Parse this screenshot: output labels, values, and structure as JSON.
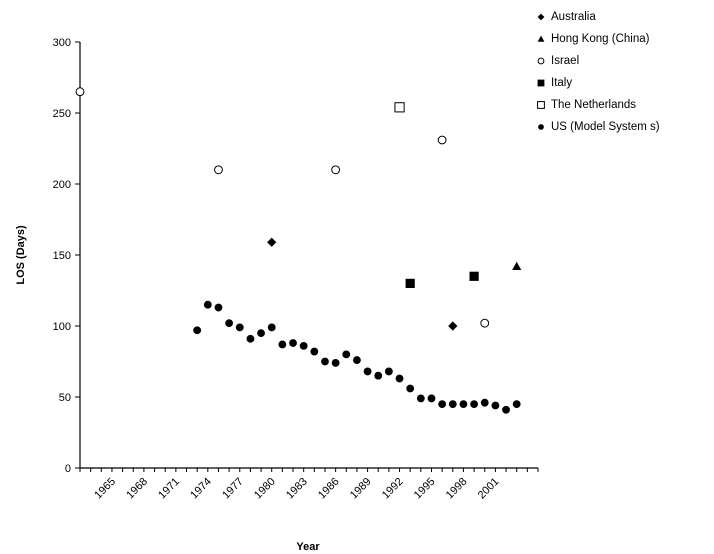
{
  "chart_data": {
    "type": "scatter",
    "title": "",
    "xlabel": "Year",
    "ylabel": "LOS (Days)",
    "xlim": [
      1962,
      2005
    ],
    "ylim": [
      0,
      300
    ],
    "y_ticks": [
      0,
      50,
      100,
      150,
      200,
      250,
      300
    ],
    "x_tick_labels": [
      "1965",
      "1968",
      "1971",
      "1974",
      "1977",
      "1980",
      "1983",
      "1986",
      "1989",
      "1992",
      "1995",
      "1998",
      "2001"
    ],
    "legend_position": "top-right",
    "grid": false,
    "series": [
      {
        "name": "Australia",
        "marker": "diamond",
        "points": [
          [
            1980,
            159
          ],
          [
            1997,
            100
          ]
        ]
      },
      {
        "name": "Hong Kong (China)",
        "marker": "triangle",
        "points": [
          [
            2003,
            142
          ]
        ]
      },
      {
        "name": "Israel",
        "marker": "circle-open",
        "points": [
          [
            1962,
            265
          ],
          [
            1975,
            210
          ],
          [
            1986,
            210
          ],
          [
            1996,
            231
          ],
          [
            2000,
            102
          ]
        ]
      },
      {
        "name": "Italy",
        "marker": "square",
        "points": [
          [
            1993,
            130
          ],
          [
            1999,
            135
          ]
        ]
      },
      {
        "name": "The Netherlands",
        "marker": "square-open",
        "points": [
          [
            1992,
            254
          ]
        ]
      },
      {
        "name": "US (Model System s)",
        "marker": "circle",
        "points": [
          [
            1973,
            97
          ],
          [
            1974,
            115
          ],
          [
            1975,
            113
          ],
          [
            1976,
            102
          ],
          [
            1977,
            99
          ],
          [
            1978,
            91
          ],
          [
            1979,
            95
          ],
          [
            1980,
            99
          ],
          [
            1981,
            87
          ],
          [
            1982,
            88
          ],
          [
            1983,
            86
          ],
          [
            1984,
            82
          ],
          [
            1985,
            75
          ],
          [
            1986,
            74
          ],
          [
            1987,
            80
          ],
          [
            1988,
            76
          ],
          [
            1989,
            68
          ],
          [
            1990,
            65
          ],
          [
            1991,
            68
          ],
          [
            1992,
            63
          ],
          [
            1993,
            56
          ],
          [
            1994,
            49
          ],
          [
            1995,
            49
          ],
          [
            1996,
            45
          ],
          [
            1997,
            45
          ],
          [
            1998,
            45
          ],
          [
            1999,
            45
          ],
          [
            2000,
            46
          ],
          [
            2001,
            44
          ],
          [
            2002,
            41
          ],
          [
            2003,
            45
          ]
        ]
      }
    ]
  }
}
